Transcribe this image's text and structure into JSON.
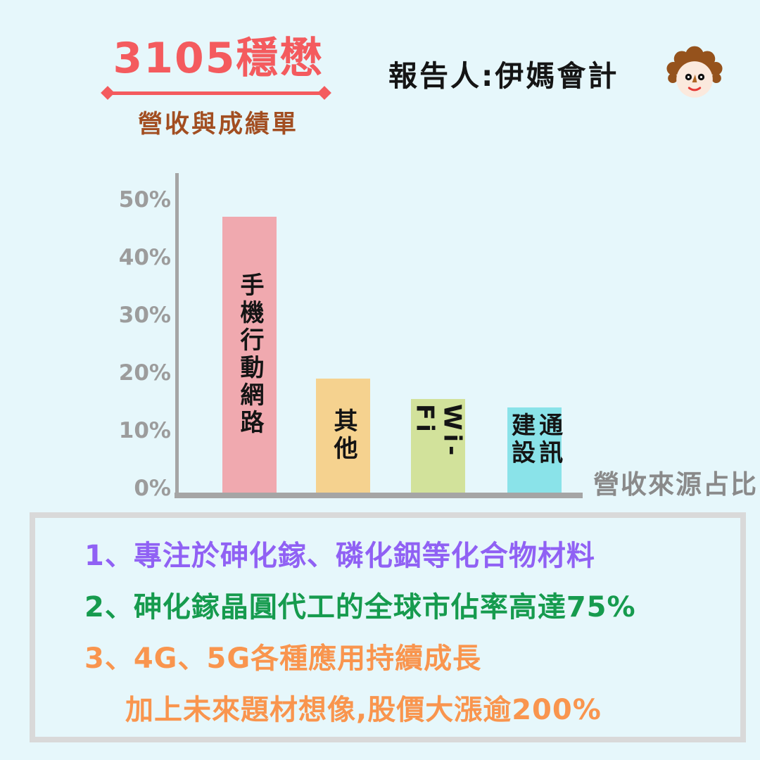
{
  "page": {
    "background_color": "#E6F7FB"
  },
  "header": {
    "title": "3105穩懋",
    "title_color": "#F45B5E",
    "subtitle": "營收與成績單",
    "subtitle_color": "#A24E21",
    "reporter_label": "報告人:伊媽會計",
    "avatar": "woman-curly-hair-face"
  },
  "chart_data": {
    "type": "bar",
    "title": "",
    "categories": [
      "手機行動網路",
      "其他",
      "Wi-Fi",
      "通訊建設"
    ],
    "display_labels": [
      "手機行動網路",
      "其他",
      "Wi-Fi",
      "通訊建設"
    ],
    "values": [
      47,
      19.5,
      16,
      14.5
    ],
    "unit": "%",
    "bar_colors": [
      "#F0A9AF",
      "#F5D28F",
      "#D2E29B",
      "#8AE3E9"
    ],
    "xlabel": "營收來源占比",
    "ylabel": "",
    "ylim": [
      0,
      50
    ],
    "ytick_labels": [
      "50%",
      "40%",
      "30%",
      "20%",
      "10%",
      "0%"
    ],
    "ytick_values": [
      50,
      40,
      30,
      20,
      10,
      0
    ],
    "grid": false,
    "legend": "none",
    "axis_color": "#A5A5A5",
    "tick_color": "#9C9C9C"
  },
  "notes": {
    "items": [
      {
        "text": "1、專注於砷化鎵、磷化銦等化合物材料",
        "color": "#9061F4",
        "indent": false
      },
      {
        "text": "2、砷化鎵晶圓代工的全球市佔率高達75%",
        "color": "#169B4E",
        "indent": false
      },
      {
        "text": "3、4G、5G各種應用持續成長",
        "color": "#F9954E",
        "indent": false
      },
      {
        "text": "加上未來題材想像,股價大漲逾200%",
        "color": "#F9954E",
        "indent": true
      }
    ]
  }
}
